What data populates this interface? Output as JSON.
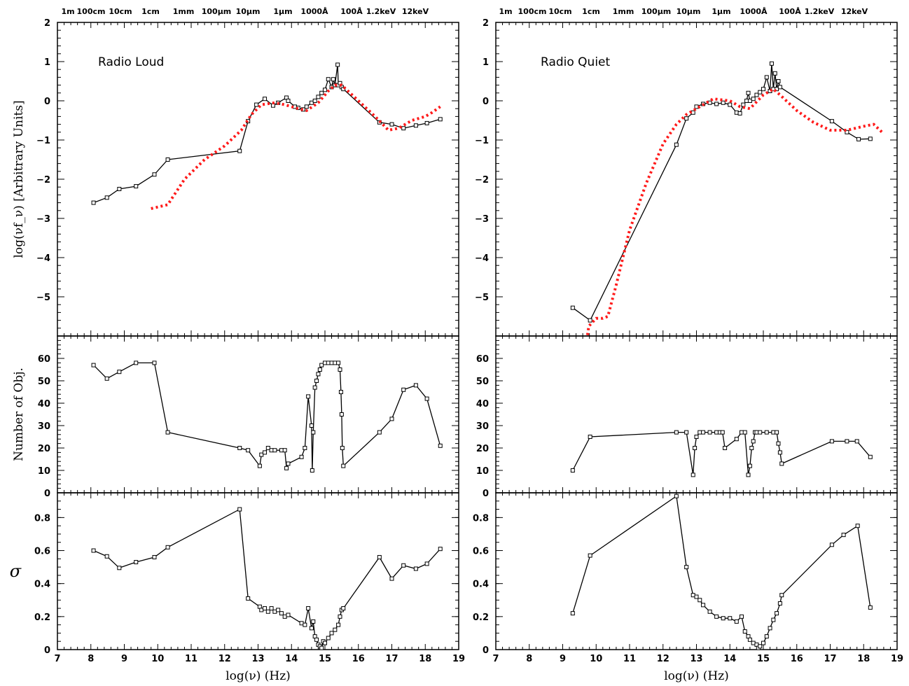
{
  "chart_data": [
    {
      "type": "line",
      "panel": "sed",
      "column": "radio-loud",
      "annotation": "Radio Loud",
      "ylabel": "log(νf_ν) [Arbitrary Units]",
      "xlim": [
        7,
        19
      ],
      "ylim": [
        -6,
        2
      ],
      "yticks": [
        "2",
        "1",
        "0",
        "−1",
        "−2",
        "−3",
        "−4",
        "−5"
      ],
      "top_wavelength_labels": [
        "1m",
        "100cm",
        "10cm",
        "1cm",
        "1mm",
        "100μm",
        "10μm",
        "1μm",
        "1000Å",
        "100Å",
        "1.2keV",
        "12keV"
      ],
      "series": [
        {
          "style": "solid-black-markers",
          "x": [
            8.08,
            8.48,
            8.85,
            9.35,
            9.9,
            10.3,
            12.45,
            12.7,
            12.95,
            13.2,
            13.45,
            13.6,
            13.85,
            13.9,
            14.1,
            14.2,
            14.35,
            14.45,
            14.6,
            14.7,
            14.8,
            14.9,
            15.0,
            15.1,
            15.2,
            15.25,
            15.3,
            15.38,
            15.4,
            15.45,
            15.5,
            15.55,
            16.63,
            17.0,
            17.35,
            17.72,
            18.05,
            18.45
          ],
          "y": [
            -2.6,
            -2.47,
            -2.25,
            -2.18,
            -1.88,
            -1.5,
            -1.28,
            -0.52,
            -0.1,
            0.05,
            -0.12,
            -0.05,
            0.08,
            0.0,
            -0.15,
            -0.18,
            -0.22,
            -0.15,
            -0.05,
            0.0,
            0.1,
            0.2,
            0.28,
            0.55,
            0.35,
            0.55,
            0.4,
            0.92,
            0.4,
            0.45,
            0.35,
            0.3,
            -0.55,
            -0.6,
            -0.7,
            -0.63,
            -0.57,
            -0.47
          ]
        },
        {
          "style": "dotted-red",
          "x": [
            9.8,
            10.3,
            10.8,
            11.4,
            12.0,
            12.5,
            12.8,
            13.1,
            13.5,
            13.8,
            14.2,
            14.45,
            14.8,
            15.1,
            15.3,
            15.5,
            16.0,
            16.5,
            16.9,
            17.2,
            17.6,
            18.0,
            18.2,
            18.45
          ],
          "y": [
            -2.75,
            -2.65,
            -2.0,
            -1.5,
            -1.15,
            -0.75,
            -0.35,
            -0.1,
            -0.05,
            -0.1,
            -0.2,
            -0.25,
            -0.05,
            0.25,
            0.4,
            0.4,
            0.0,
            -0.4,
            -0.75,
            -0.7,
            -0.5,
            -0.4,
            -0.3,
            -0.15
          ]
        }
      ]
    },
    {
      "type": "line",
      "panel": "sed",
      "column": "radio-quiet",
      "annotation": "Radio Quiet",
      "ylabel": "",
      "xlim": [
        7,
        19
      ],
      "ylim": [
        -6,
        2
      ],
      "yticks": [
        "2",
        "1",
        "0",
        "−1",
        "−2",
        "−3",
        "−4",
        "−5"
      ],
      "top_wavelength_labels": [
        "1m",
        "100cm",
        "10cm",
        "1cm",
        "1mm",
        "100μm",
        "10μm",
        "1μm",
        "1000Å",
        "100Å",
        "1.2keV",
        "12keV"
      ],
      "series": [
        {
          "style": "solid-black-markers",
          "x": [
            9.3,
            9.82,
            12.4,
            12.7,
            12.9,
            13.0,
            13.2,
            13.4,
            13.6,
            13.8,
            14.0,
            14.2,
            14.3,
            14.4,
            14.5,
            14.55,
            14.6,
            14.7,
            14.8,
            14.9,
            15.0,
            15.1,
            15.2,
            15.25,
            15.3,
            15.35,
            15.4,
            15.45,
            15.5,
            17.05,
            17.5,
            17.85,
            18.2
          ],
          "y": [
            -5.28,
            -5.6,
            -1.12,
            -0.45,
            -0.3,
            -0.15,
            -0.08,
            -0.05,
            -0.08,
            -0.05,
            -0.1,
            -0.3,
            -0.32,
            -0.1,
            0.0,
            0.2,
            0.0,
            0.05,
            0.15,
            0.22,
            0.3,
            0.6,
            0.25,
            0.95,
            0.3,
            0.7,
            0.3,
            0.5,
            0.35,
            -0.52,
            -0.8,
            -0.98,
            -0.97
          ]
        },
        {
          "style": "dotted-red",
          "x": [
            9.72,
            9.78,
            10.0,
            10.2,
            10.35,
            10.6,
            11.0,
            11.5,
            12.0,
            12.4,
            12.7,
            13.0,
            13.5,
            14.0,
            14.3,
            14.6,
            15.0,
            15.3,
            15.5,
            16.0,
            16.5,
            17.0,
            17.5,
            18.0,
            18.3,
            18.55
          ],
          "y": [
            -6.1,
            -5.75,
            -5.55,
            -5.55,
            -5.5,
            -4.7,
            -3.3,
            -2.1,
            -1.1,
            -0.6,
            -0.35,
            -0.2,
            0.05,
            0.0,
            -0.15,
            -0.2,
            0.15,
            0.3,
            0.15,
            -0.25,
            -0.55,
            -0.75,
            -0.75,
            -0.65,
            -0.6,
            -0.8
          ]
        }
      ]
    },
    {
      "type": "line",
      "panel": "count",
      "column": "radio-loud",
      "ylabel": "Number of Obj.",
      "xlim": [
        7,
        19
      ],
      "ylim": [
        0,
        70
      ],
      "yticks": [
        "0",
        "10",
        "20",
        "30",
        "40",
        "50",
        "60"
      ],
      "x": [
        8.08,
        8.48,
        8.85,
        9.35,
        9.9,
        10.3,
        12.45,
        12.7,
        13.05,
        13.1,
        13.2,
        13.3,
        13.4,
        13.5,
        13.7,
        13.8,
        13.85,
        13.9,
        14.3,
        14.4,
        14.5,
        14.6,
        14.62,
        14.65,
        14.7,
        14.75,
        14.8,
        14.85,
        14.9,
        15.0,
        15.1,
        15.2,
        15.3,
        15.4,
        15.45,
        15.48,
        15.5,
        15.52,
        15.55,
        16.63,
        17.0,
        17.35,
        17.72,
        18.05,
        18.45
      ],
      "y": [
        57,
        51,
        54,
        58,
        58,
        27,
        20,
        19,
        12,
        17,
        18,
        20,
        19,
        19,
        19,
        19,
        11,
        13,
        16,
        20,
        43,
        30,
        10,
        27,
        47,
        50,
        53,
        55,
        57,
        58,
        58,
        58,
        58,
        58,
        55,
        45,
        35,
        20,
        12,
        27,
        33,
        46,
        48,
        42,
        21
      ]
    },
    {
      "type": "line",
      "panel": "count",
      "column": "radio-quiet",
      "ylabel": "",
      "xlim": [
        7,
        19
      ],
      "ylim": [
        0,
        70
      ],
      "yticks": [
        "0",
        "10",
        "20",
        "30",
        "40",
        "50",
        "60"
      ],
      "x": [
        9.3,
        9.82,
        12.4,
        12.7,
        12.9,
        12.95,
        13.0,
        13.1,
        13.2,
        13.4,
        13.6,
        13.7,
        13.78,
        13.85,
        14.2,
        14.35,
        14.45,
        14.55,
        14.6,
        14.65,
        14.7,
        14.75,
        14.8,
        14.9,
        15.1,
        15.3,
        15.4,
        15.45,
        15.5,
        15.55,
        17.05,
        17.5,
        17.8,
        18.2
      ],
      "y": [
        10,
        25,
        27,
        27,
        8,
        20,
        25,
        27,
        27,
        27,
        27,
        27,
        27,
        20,
        24,
        27,
        27,
        8,
        12,
        20,
        23,
        27,
        27,
        27,
        27,
        27,
        27,
        22,
        18,
        13,
        23,
        23,
        23,
        16
      ]
    },
    {
      "type": "line",
      "panel": "sigma",
      "column": "radio-loud",
      "ylabel": "σ",
      "xlabel": "log(ν) (Hz)",
      "xlim": [
        7,
        19
      ],
      "ylim": [
        0,
        0.95
      ],
      "yticks": [
        "0",
        "0.2",
        "0.4",
        "0.6",
        "0.8"
      ],
      "xticks": [
        "7",
        "8",
        "9",
        "10",
        "11",
        "12",
        "13",
        "14",
        "15",
        "16",
        "17",
        "18",
        "19"
      ],
      "x": [
        8.08,
        8.48,
        8.85,
        9.35,
        9.9,
        10.3,
        12.45,
        12.7,
        13.05,
        13.1,
        13.2,
        13.3,
        13.4,
        13.5,
        13.6,
        13.7,
        13.8,
        13.9,
        14.3,
        14.4,
        14.5,
        14.6,
        14.65,
        14.7,
        14.75,
        14.8,
        14.85,
        14.9,
        14.95,
        15.0,
        15.1,
        15.2,
        15.3,
        15.4,
        15.45,
        15.5,
        15.55,
        16.63,
        17.0,
        17.35,
        17.72,
        18.05,
        18.45
      ],
      "y": [
        0.6,
        0.565,
        0.495,
        0.53,
        0.56,
        0.62,
        0.85,
        0.31,
        0.26,
        0.24,
        0.25,
        0.23,
        0.25,
        0.23,
        0.24,
        0.22,
        0.2,
        0.21,
        0.16,
        0.15,
        0.25,
        0.13,
        0.17,
        0.08,
        0.06,
        0.03,
        0.02,
        0.01,
        0.05,
        0.04,
        0.07,
        0.1,
        0.12,
        0.15,
        0.2,
        0.24,
        0.25,
        0.56,
        0.43,
        0.51,
        0.49,
        0.52,
        0.61
      ]
    },
    {
      "type": "line",
      "panel": "sigma",
      "column": "radio-quiet",
      "ylabel": "",
      "xlabel": "log(ν) (Hz)",
      "xlim": [
        7,
        19
      ],
      "ylim": [
        0,
        0.95
      ],
      "yticks": [
        "0",
        "0.2",
        "0.4",
        "0.6",
        "0.8"
      ],
      "xticks": [
        "7",
        "8",
        "9",
        "10",
        "11",
        "12",
        "13",
        "14",
        "15",
        "16",
        "17",
        "18",
        "19"
      ],
      "x": [
        9.3,
        9.82,
        12.4,
        12.7,
        12.9,
        13.0,
        13.1,
        13.2,
        13.4,
        13.6,
        13.8,
        14.0,
        14.2,
        14.35,
        14.45,
        14.55,
        14.6,
        14.7,
        14.8,
        14.85,
        14.9,
        15.0,
        15.1,
        15.2,
        15.3,
        15.4,
        15.5,
        15.55,
        17.05,
        17.4,
        17.82,
        18.2
      ],
      "y": [
        0.22,
        0.57,
        0.93,
        0.5,
        0.33,
        0.32,
        0.3,
        0.27,
        0.23,
        0.2,
        0.19,
        0.19,
        0.17,
        0.2,
        0.11,
        0.08,
        0.06,
        0.04,
        0.03,
        0.01,
        0.02,
        0.04,
        0.08,
        0.13,
        0.18,
        0.22,
        0.28,
        0.33,
        0.635,
        0.695,
        0.75,
        0.255
      ]
    }
  ]
}
